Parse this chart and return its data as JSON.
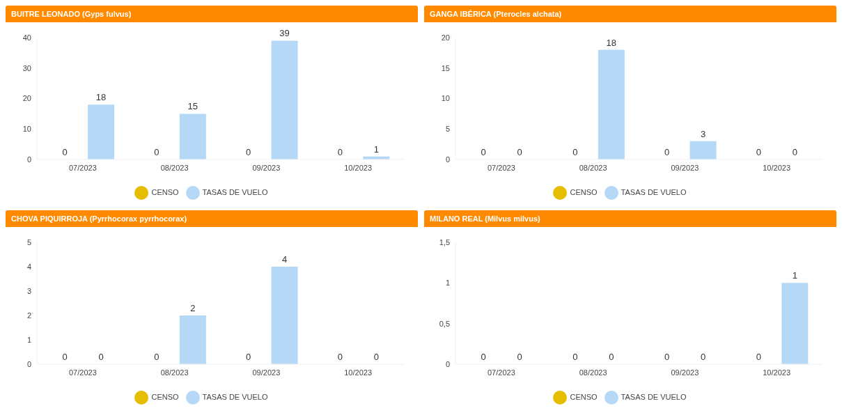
{
  "chart_data": [
    {
      "type": "bar",
      "title": "BUITRE LEONADO (Gyps fulvus)",
      "categories": [
        "07/2023",
        "08/2023",
        "09/2023",
        "10/2023"
      ],
      "series": [
        {
          "name": "CENSO",
          "color": "#e6be00",
          "values": [
            0,
            0,
            0,
            0
          ]
        },
        {
          "name": "TASAS DE VUELO",
          "color": "#b5d8f7",
          "values": [
            18,
            15,
            39,
            1
          ]
        }
      ],
      "ylim": [
        0,
        40
      ],
      "yticks": [
        0,
        10,
        20,
        30,
        40
      ],
      "data_labels": true,
      "legend": "bottom",
      "grid": false
    },
    {
      "type": "bar",
      "title": "GANGA IBÉRICA (Pterocles alchata)",
      "categories": [
        "07/2023",
        "08/2023",
        "09/2023",
        "10/2023"
      ],
      "series": [
        {
          "name": "CENSO",
          "color": "#e6be00",
          "values": [
            0,
            0,
            0,
            0
          ]
        },
        {
          "name": "TASAS DE VUELO",
          "color": "#b5d8f7",
          "values": [
            0,
            18,
            3,
            0
          ]
        }
      ],
      "ylim": [
        0,
        20
      ],
      "yticks": [
        0,
        5,
        10,
        15,
        20
      ],
      "data_labels": true,
      "legend": "bottom",
      "grid": false
    },
    {
      "type": "bar",
      "title": "CHOVA PIQUIRROJA (Pyrrhocorax pyrrhocorax)",
      "categories": [
        "07/2023",
        "08/2023",
        "09/2023",
        "10/2023"
      ],
      "series": [
        {
          "name": "CENSO",
          "color": "#e6be00",
          "values": [
            0,
            0,
            0,
            0
          ]
        },
        {
          "name": "TASAS DE VUELO",
          "color": "#b5d8f7",
          "values": [
            0,
            2,
            4,
            0
          ]
        }
      ],
      "ylim": [
        0,
        5
      ],
      "yticks": [
        0,
        1,
        2,
        3,
        4,
        5
      ],
      "data_labels": true,
      "legend": "bottom",
      "grid": false
    },
    {
      "type": "bar",
      "title": "MILANO REAL (Milvus milvus)",
      "categories": [
        "07/2023",
        "08/2023",
        "09/2023",
        "10/2023"
      ],
      "series": [
        {
          "name": "CENSO",
          "color": "#e6be00",
          "values": [
            0,
            0,
            0,
            0
          ]
        },
        {
          "name": "TASAS DE VUELO",
          "color": "#b5d8f7",
          "values": [
            0,
            0,
            0,
            1
          ]
        }
      ],
      "ylim": [
        0,
        1.5
      ],
      "yticks": [
        0,
        {
          "value": 0.5,
          "label": "0,5"
        },
        1,
        {
          "value": 1.5,
          "label": "1,5"
        }
      ],
      "data_labels": true,
      "legend": "bottom",
      "grid": false
    }
  ]
}
